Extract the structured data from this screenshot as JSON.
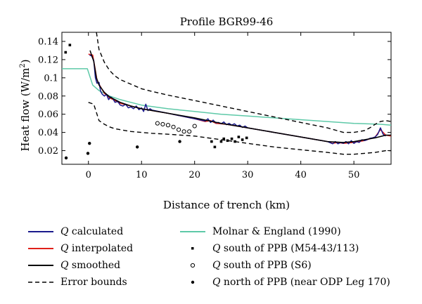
{
  "chart_data": {
    "type": "line",
    "title": "Profile BGR99-46",
    "xlabel": "Distance of trench (km)",
    "ylabel": "Heat flow (W/m²)",
    "xlim": [
      -5,
      57
    ],
    "ylim": [
      0.005,
      0.15
    ],
    "xticks": [
      0,
      10,
      20,
      30,
      40,
      50
    ],
    "yticks": [
      0.02,
      0.04,
      0.06,
      0.08,
      0.1,
      0.12,
      0.14
    ],
    "ytick_labels": [
      "0.02",
      "0.04",
      "0.06",
      "0.08",
      "0.1",
      "0.12",
      "0.14"
    ],
    "colors": {
      "calculated": "#1a1a8c",
      "interpolated": "#e0201a",
      "smoothed": "#000000",
      "error": "#000000",
      "molnar": "#5ec9a8"
    },
    "series": [
      {
        "name": "Q calculated",
        "style": "solid",
        "color": "#1a1a8c",
        "x": [
          0.2,
          0.6,
          1.0,
          1.3,
          1.6,
          2.0,
          2.3,
          2.6,
          3.0,
          3.4,
          3.8,
          4.2,
          4.6,
          5.0,
          5.5,
          6.0,
          6.5,
          7.0,
          7.5,
          8.0,
          8.5,
          9.0,
          9.5,
          10.0,
          10.4,
          10.8,
          11.2,
          11.6,
          12,
          15,
          20,
          22,
          22.5,
          23,
          23.5,
          24,
          24.5,
          25,
          25.5,
          26,
          26.5,
          27,
          27.5,
          28,
          28.5,
          29,
          29.5,
          30,
          35,
          40,
          45,
          46,
          46.5,
          47,
          47.5,
          48,
          48.5,
          49,
          49.5,
          50,
          50.5,
          51,
          51.5,
          52,
          52.5,
          53,
          53.5,
          54,
          54.5,
          55,
          55.5,
          56
        ],
        "y": [
          0.125,
          0.124,
          0.119,
          0.1,
          0.094,
          0.095,
          0.085,
          0.082,
          0.08,
          0.082,
          0.076,
          0.079,
          0.077,
          0.073,
          0.074,
          0.07,
          0.069,
          0.071,
          0.067,
          0.068,
          0.066,
          0.069,
          0.065,
          0.067,
          0.063,
          0.071,
          0.064,
          0.066,
          0.0645,
          0.061,
          0.055,
          0.0525,
          0.055,
          0.051,
          0.0535,
          0.0505,
          0.051,
          0.0495,
          0.0515,
          0.0485,
          0.05,
          0.048,
          0.0495,
          0.047,
          0.048,
          0.0455,
          0.047,
          0.045,
          0.04,
          0.035,
          0.03,
          0.0275,
          0.03,
          0.0275,
          0.029,
          0.028,
          0.03,
          0.0275,
          0.031,
          0.028,
          0.03,
          0.029,
          0.032,
          0.031,
          0.032,
          0.0335,
          0.034,
          0.035,
          0.038,
          0.045,
          0.038,
          0.036
        ]
      },
      {
        "name": "Q interpolated",
        "style": "solid",
        "color": "#e0201a",
        "x": [
          0,
          0.8,
          1.2,
          1.6,
          2,
          3,
          4,
          5,
          6,
          8,
          10,
          12,
          15,
          20,
          22,
          23,
          24,
          26,
          28,
          30,
          35,
          40,
          45,
          46,
          47,
          48,
          50,
          52,
          53,
          54,
          55,
          56,
          57
        ],
        "y": [
          0.126,
          0.125,
          0.112,
          0.098,
          0.093,
          0.083,
          0.078,
          0.075,
          0.072,
          0.069,
          0.066,
          0.064,
          0.061,
          0.055,
          0.052,
          0.053,
          0.05,
          0.049,
          0.047,
          0.045,
          0.04,
          0.035,
          0.03,
          0.028,
          0.029,
          0.028,
          0.029,
          0.031,
          0.033,
          0.035,
          0.043,
          0.037,
          0.036
        ]
      },
      {
        "name": "Q smoothed",
        "style": "solid",
        "color": "#000000",
        "x": [
          0.3,
          1,
          1.5,
          2,
          3,
          4,
          5,
          6,
          8,
          10,
          12,
          15,
          20,
          25,
          30,
          35,
          40,
          45,
          48,
          50,
          52,
          54,
          56,
          57
        ],
        "y": [
          0.13,
          0.118,
          0.1,
          0.092,
          0.084,
          0.079,
          0.076,
          0.073,
          0.069,
          0.066,
          0.064,
          0.061,
          0.056,
          0.05,
          0.045,
          0.04,
          0.035,
          0.03,
          0.029,
          0.03,
          0.032,
          0.034,
          0.037,
          0.037
        ]
      },
      {
        "name": "Error bounds",
        "style": "dashed",
        "color": "#000000",
        "x": [
          1.5,
          2,
          3,
          4,
          5,
          6,
          8,
          10,
          12,
          15,
          20,
          25,
          30,
          35,
          40,
          45,
          48,
          50,
          52,
          53,
          54,
          55,
          56,
          57
        ],
        "y": [
          0.15,
          0.131,
          0.117,
          0.108,
          0.102,
          0.098,
          0.093,
          0.088,
          0.085,
          0.081,
          0.075,
          0.069,
          0.063,
          0.057,
          0.051,
          0.045,
          0.04,
          0.04,
          0.042,
          0.045,
          0.049,
          0.052,
          0.053,
          0.052
        ]
      },
      {
        "name": "Error bounds (lower)",
        "style": "dashed",
        "color": "#000000",
        "x": [
          0,
          1,
          2,
          3,
          4,
          5,
          6,
          8,
          10,
          12,
          15,
          20,
          25,
          30,
          35,
          40,
          45,
          48,
          50,
          52,
          54,
          55,
          56,
          57
        ],
        "y": [
          0.073,
          0.071,
          0.053,
          0.049,
          0.046,
          0.044,
          0.043,
          0.041,
          0.04,
          0.039,
          0.038,
          0.036,
          0.032,
          0.028,
          0.024,
          0.021,
          0.018,
          0.016,
          0.016,
          0.017,
          0.018,
          0.019,
          0.02,
          0.02
        ]
      },
      {
        "name": "Molnar & England (1990)",
        "style": "solid",
        "color": "#5ec9a8",
        "x": [
          -5,
          -0.2,
          0.8,
          2,
          4,
          6,
          8,
          10,
          15,
          20,
          25,
          30,
          35,
          40,
          45,
          50,
          55,
          57
        ],
        "y": [
          0.11,
          0.11,
          0.092,
          0.086,
          0.08,
          0.076,
          0.073,
          0.07,
          0.066,
          0.063,
          0.06,
          0.058,
          0.056,
          0.054,
          0.052,
          0.05,
          0.049,
          0.048
        ]
      },
      {
        "name": "Q south of PPB (M54-43/113)",
        "style": "square",
        "color": "#000000",
        "x": [
          -4.3,
          -3.5,
          23.2,
          23.8,
          25,
          25.5,
          26.2,
          27,
          27.6,
          28.3,
          29,
          29.8
        ],
        "y": [
          0.128,
          0.136,
          0.03,
          0.024,
          0.03,
          0.033,
          0.031,
          0.033,
          0.03,
          0.035,
          0.032,
          0.034
        ]
      },
      {
        "name": "Q south of PPB (S6)",
        "style": "circle",
        "color": "#000000",
        "x": [
          13,
          14,
          15,
          16,
          17,
          18,
          19,
          20
        ],
        "y": [
          0.05,
          0.049,
          0.048,
          0.046,
          0.043,
          0.041,
          0.041,
          0.047
        ]
      },
      {
        "name": "Q north of PPB (near ODP Leg 170)",
        "style": "dot",
        "color": "#000000",
        "x": [
          -4.2,
          -0.1,
          0.2,
          9.2,
          17.2
        ],
        "y": [
          0.012,
          0.017,
          0.028,
          0.024,
          0.03
        ]
      }
    ]
  },
  "legend": {
    "left": [
      {
        "key": "calculated",
        "prefix": "Q",
        "text": " calculated"
      },
      {
        "key": "interpolated",
        "prefix": "Q",
        "text": " interpolated"
      },
      {
        "key": "smoothed",
        "prefix": "Q",
        "text": " smoothed"
      },
      {
        "key": "error",
        "prefix": "",
        "text": "Error bounds"
      }
    ],
    "right": [
      {
        "key": "molnar",
        "prefix": "",
        "text": "Molnar & England (1990)"
      },
      {
        "key": "square",
        "prefix": "Q",
        "text": " south of PPB (M54-43/113)"
      },
      {
        "key": "circle",
        "prefix": "Q",
        "text": " south of PPB (S6)"
      },
      {
        "key": "dot",
        "prefix": "Q",
        "text": " north of PPB (near ODP Leg 170)"
      }
    ]
  }
}
